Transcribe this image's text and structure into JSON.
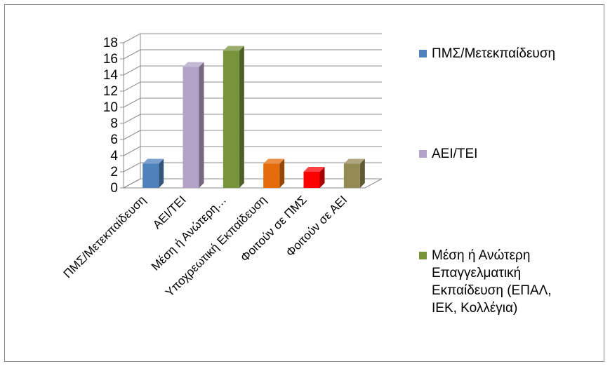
{
  "chart_data": {
    "type": "bar",
    "categories": [
      "ΠΜΣ/Μετεκπαίδευση",
      "ΑΕΙ/ΤΕΙ",
      "Μέση ή Ανώτερη…",
      "Υποχρεωτική Εκπαίδευση",
      "Φοιτούν σε ΠΜΣ",
      "Φοιτούν σε ΑΕΙ"
    ],
    "values": [
      3,
      15,
      17,
      3,
      2,
      3
    ],
    "colors": [
      "#4F81BD",
      "#B3A2C7",
      "#77933C",
      "#E46C0A",
      "#FF0000",
      "#948A54"
    ],
    "ylim": [
      0,
      18
    ],
    "yticks": [
      "0",
      "2",
      "4",
      "6",
      "8",
      "10",
      "12",
      "14",
      "16",
      "18"
    ],
    "grid": true,
    "legend_position": "right",
    "legend": [
      {
        "label": "ΠΜΣ/Μετεκπαίδευση",
        "color": "#4F81BD"
      },
      {
        "label": "ΑΕΙ/ΤΕΙ",
        "color": "#B3A2C7"
      },
      {
        "label": "Μέση ή Ανώτερη\nΕπαγγελματική\nΕκπαίδευση (ΕΠΑΛ,\nΙΕΚ, Κολλέγια)",
        "color": "#77933C"
      }
    ]
  }
}
